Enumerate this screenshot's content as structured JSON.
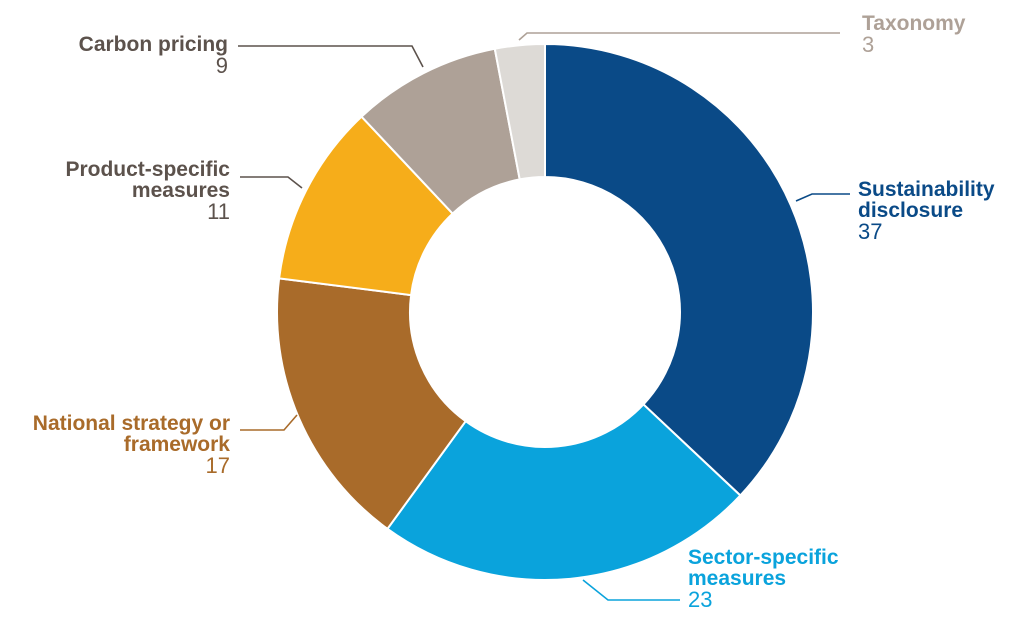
{
  "chart_data": {
    "type": "pie",
    "variant": "donut",
    "title": "",
    "categories": [
      "Sustainability disclosure",
      "Sector-specific measures",
      "National strategy or framework",
      "Product-specific measures",
      "Carbon pricing",
      "Taxonomy"
    ],
    "values": [
      37,
      23,
      17,
      11,
      9,
      3
    ],
    "colors": [
      "#0a4a87",
      "#0aa3dc",
      "#a96b2a",
      "#f6ad1a",
      "#aea197",
      "#dddad6"
    ],
    "label_colors": [
      "#0a4a87",
      "#0aa3dc",
      "#a96b2a",
      "#5c524c",
      "#5c524c",
      "#aea197"
    ],
    "labels": [
      {
        "name_lines": [
          "Sustainability",
          "disclosure"
        ],
        "value": "37"
      },
      {
        "name_lines": [
          "Sector-specific",
          "measures"
        ],
        "value": "23"
      },
      {
        "name_lines": [
          "National strategy or",
          "framework"
        ],
        "value": "17"
      },
      {
        "name_lines": [
          "Product-specific",
          "measures"
        ],
        "value": "11"
      },
      {
        "name_lines": [
          "Carbon pricing"
        ],
        "value": "9"
      },
      {
        "name_lines": [
          "Taxonomy"
        ],
        "value": "3"
      }
    ],
    "legend": "none",
    "start": "top, clockwise"
  }
}
